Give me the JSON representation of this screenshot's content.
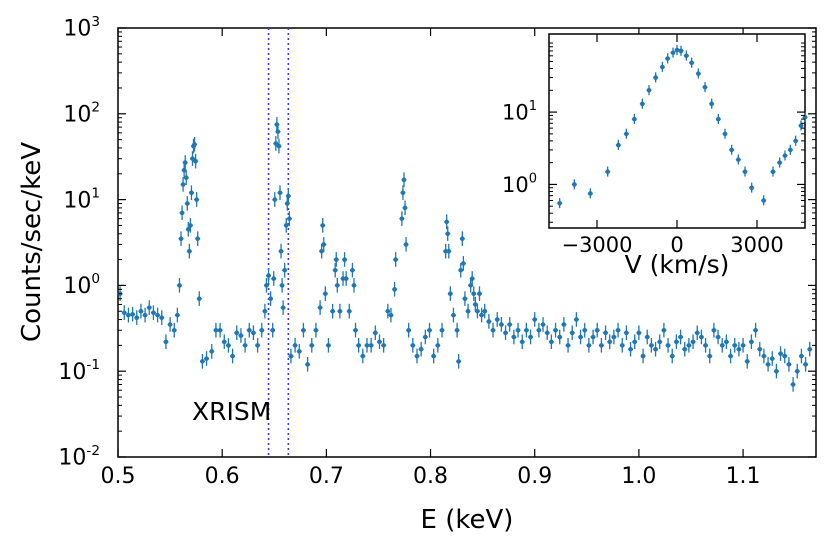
{
  "colors": {
    "data": "#1f77b4",
    "marker_line": "#4a90c8",
    "axis": "#000000",
    "vline": "#3a3aee"
  },
  "chart_data": [
    {
      "id": "main",
      "type": "scatter",
      "title": "",
      "xlabel": "E (keV)",
      "ylabel": "Counts/sec/keV",
      "xlim": [
        0.5,
        1.17
      ],
      "ylim": [
        0.01,
        1000
      ],
      "yscale": "log",
      "x_ticks": [
        0.5,
        0.6,
        0.7,
        0.8,
        0.9,
        1.0,
        1.1
      ],
      "x_tick_labels": [
        "0.5",
        "0.6",
        "0.7",
        "0.8",
        "0.9",
        "1.0",
        "1.1"
      ],
      "y_ticks": [
        {
          "value": 0.01,
          "base": "10",
          "exp": "-2"
        },
        {
          "value": 0.1,
          "base": "10",
          "exp": "-1"
        },
        {
          "value": 1,
          "base": "10",
          "exp": "0"
        },
        {
          "value": 10,
          "base": "10",
          "exp": "1"
        },
        {
          "value": 100,
          "base": "10",
          "exp": "2"
        },
        {
          "value": 1000,
          "base": "10",
          "exp": "3"
        }
      ],
      "annotation": "XRISM",
      "vertical_lines": [
        0.6445,
        0.6635
      ],
      "points": [
        [
          0.502,
          0.8
        ],
        [
          0.506,
          0.48
        ],
        [
          0.51,
          0.45
        ],
        [
          0.514,
          0.46
        ],
        [
          0.518,
          0.42
        ],
        [
          0.522,
          0.5
        ],
        [
          0.526,
          0.45
        ],
        [
          0.53,
          0.55
        ],
        [
          0.534,
          0.48
        ],
        [
          0.538,
          0.45
        ],
        [
          0.542,
          0.42
        ],
        [
          0.546,
          0.22
        ],
        [
          0.55,
          0.35
        ],
        [
          0.554,
          0.3
        ],
        [
          0.557,
          0.45
        ],
        [
          0.559,
          1.0
        ],
        [
          0.5605,
          3.5
        ],
        [
          0.5615,
          7.0
        ],
        [
          0.5625,
          15
        ],
        [
          0.5635,
          22
        ],
        [
          0.5645,
          27
        ],
        [
          0.5655,
          18
        ],
        [
          0.5665,
          9
        ],
        [
          0.5675,
          4.5
        ],
        [
          0.5685,
          2.5
        ],
        [
          0.5695,
          5
        ],
        [
          0.5705,
          12
        ],
        [
          0.5715,
          30
        ],
        [
          0.5725,
          42
        ],
        [
          0.5735,
          44
        ],
        [
          0.5745,
          28
        ],
        [
          0.5755,
          10
        ],
        [
          0.5765,
          3.5
        ],
        [
          0.578,
          0.7
        ],
        [
          0.581,
          0.13
        ],
        [
          0.585,
          0.14
        ],
        [
          0.59,
          0.17
        ],
        [
          0.594,
          0.3
        ],
        [
          0.598,
          0.3
        ],
        [
          0.602,
          0.22
        ],
        [
          0.606,
          0.2
        ],
        [
          0.61,
          0.15
        ],
        [
          0.614,
          0.28
        ],
        [
          0.618,
          0.26
        ],
        [
          0.622,
          0.2
        ],
        [
          0.626,
          0.3
        ],
        [
          0.63,
          0.28
        ],
        [
          0.634,
          0.2
        ],
        [
          0.638,
          0.3
        ],
        [
          0.641,
          0.5
        ],
        [
          0.6425,
          1.0
        ],
        [
          0.6445,
          1.3
        ],
        [
          0.6465,
          0.7
        ],
        [
          0.6485,
          0.3
        ],
        [
          0.6495,
          1.2
        ],
        [
          0.6505,
          10
        ],
        [
          0.6515,
          45
        ],
        [
          0.6525,
          75
        ],
        [
          0.6535,
          62
        ],
        [
          0.6545,
          42
        ],
        [
          0.6555,
          12
        ],
        [
          0.6565,
          2.5
        ],
        [
          0.6575,
          1.0
        ],
        [
          0.6585,
          0.55
        ],
        [
          0.66,
          1.5
        ],
        [
          0.6615,
          5
        ],
        [
          0.6625,
          9
        ],
        [
          0.6635,
          11
        ],
        [
          0.6645,
          6
        ],
        [
          0.666,
          0.15
        ],
        [
          0.67,
          0.2
        ],
        [
          0.674,
          0.17
        ],
        [
          0.678,
          0.3
        ],
        [
          0.682,
          0.12
        ],
        [
          0.686,
          0.2
        ],
        [
          0.69,
          0.3
        ],
        [
          0.694,
          0.55
        ],
        [
          0.6955,
          2.5
        ],
        [
          0.6965,
          5
        ],
        [
          0.6975,
          3
        ],
        [
          0.699,
          0.8
        ],
        [
          0.702,
          0.2
        ],
        [
          0.706,
          0.5
        ],
        [
          0.7085,
          1.5
        ],
        [
          0.7095,
          2.0
        ],
        [
          0.7105,
          1.0
        ],
        [
          0.713,
          0.5
        ],
        [
          0.716,
          1.2
        ],
        [
          0.7175,
          2.0
        ],
        [
          0.719,
          1.2
        ],
        [
          0.722,
          0.5
        ],
        [
          0.725,
          1.5
        ],
        [
          0.7265,
          1.0
        ],
        [
          0.728,
          0.3
        ],
        [
          0.731,
          0.2
        ],
        [
          0.735,
          0.15
        ],
        [
          0.739,
          0.2
        ],
        [
          0.743,
          0.2
        ],
        [
          0.747,
          0.28
        ],
        [
          0.751,
          0.22
        ],
        [
          0.755,
          0.2
        ],
        [
          0.759,
          0.5
        ],
        [
          0.762,
          0.45
        ],
        [
          0.7655,
          0.9
        ],
        [
          0.7665,
          2.0
        ],
        [
          0.7725,
          6
        ],
        [
          0.7735,
          12
        ],
        [
          0.7745,
          17
        ],
        [
          0.7755,
          8
        ],
        [
          0.7765,
          3
        ],
        [
          0.779,
          0.3
        ],
        [
          0.783,
          0.2
        ],
        [
          0.787,
          0.15
        ],
        [
          0.791,
          0.18
        ],
        [
          0.795,
          0.25
        ],
        [
          0.799,
          0.3
        ],
        [
          0.803,
          0.15
        ],
        [
          0.807,
          0.2
        ],
        [
          0.811,
          0.3
        ],
        [
          0.8145,
          2.5
        ],
        [
          0.8155,
          5.5
        ],
        [
          0.8165,
          4
        ],
        [
          0.8175,
          2.5
        ],
        [
          0.819,
          0.8
        ],
        [
          0.822,
          0.45
        ],
        [
          0.8255,
          0.3
        ],
        [
          0.827,
          0.13
        ],
        [
          0.829,
          1.5
        ],
        [
          0.8305,
          3.5
        ],
        [
          0.8315,
          1.8
        ],
        [
          0.833,
          0.7
        ],
        [
          0.836,
          0.5
        ],
        [
          0.8385,
          1.0
        ],
        [
          0.84,
          1.2
        ],
        [
          0.8415,
          0.8
        ],
        [
          0.843,
          0.6
        ],
        [
          0.845,
          0.5
        ],
        [
          0.847,
          0.8
        ],
        [
          0.849,
          0.45
        ],
        [
          0.852,
          0.5
        ],
        [
          0.856,
          0.38
        ],
        [
          0.86,
          0.3
        ],
        [
          0.864,
          0.4
        ],
        [
          0.868,
          0.35
        ],
        [
          0.872,
          0.28
        ],
        [
          0.876,
          0.35
        ],
        [
          0.88,
          0.25
        ],
        [
          0.884,
          0.3
        ],
        [
          0.888,
          0.22
        ],
        [
          0.892,
          0.3
        ],
        [
          0.896,
          0.25
        ],
        [
          0.9,
          0.4
        ],
        [
          0.904,
          0.3
        ],
        [
          0.908,
          0.35
        ],
        [
          0.912,
          0.28
        ],
        [
          0.916,
          0.22
        ],
        [
          0.92,
          0.3
        ],
        [
          0.924,
          0.25
        ],
        [
          0.928,
          0.35
        ],
        [
          0.932,
          0.2
        ],
        [
          0.936,
          0.28
        ],
        [
          0.94,
          0.4
        ],
        [
          0.944,
          0.25
        ],
        [
          0.948,
          0.3
        ],
        [
          0.952,
          0.2
        ],
        [
          0.956,
          0.25
        ],
        [
          0.96,
          0.3
        ],
        [
          0.964,
          0.2
        ],
        [
          0.968,
          0.28
        ],
        [
          0.972,
          0.22
        ],
        [
          0.976,
          0.25
        ],
        [
          0.98,
          0.3
        ],
        [
          0.984,
          0.2
        ],
        [
          0.988,
          0.28
        ],
        [
          0.992,
          0.18
        ],
        [
          0.996,
          0.22
        ],
        [
          1.0,
          0.28
        ],
        [
          1.004,
          0.15
        ],
        [
          1.008,
          0.25
        ],
        [
          1.012,
          0.2
        ],
        [
          1.016,
          0.18
        ],
        [
          1.02,
          0.22
        ],
        [
          1.024,
          0.3
        ],
        [
          1.028,
          0.2
        ],
        [
          1.032,
          0.15
        ],
        [
          1.036,
          0.22
        ],
        [
          1.04,
          0.25
        ],
        [
          1.044,
          0.18
        ],
        [
          1.048,
          0.2
        ],
        [
          1.052,
          0.22
        ],
        [
          1.056,
          0.28
        ],
        [
          1.06,
          0.25
        ],
        [
          1.064,
          0.2
        ],
        [
          1.068,
          0.15
        ],
        [
          1.072,
          0.3
        ],
        [
          1.076,
          0.25
        ],
        [
          1.08,
          0.2
        ],
        [
          1.084,
          0.22
        ],
        [
          1.088,
          0.15
        ],
        [
          1.092,
          0.2
        ],
        [
          1.096,
          0.18
        ],
        [
          1.1,
          0.2
        ],
        [
          1.104,
          0.13
        ],
        [
          1.108,
          0.22
        ],
        [
          1.112,
          0.3
        ],
        [
          1.116,
          0.18
        ],
        [
          1.12,
          0.15
        ],
        [
          1.124,
          0.12
        ],
        [
          1.128,
          0.14
        ],
        [
          1.132,
          0.1
        ],
        [
          1.136,
          0.16
        ],
        [
          1.14,
          0.15
        ],
        [
          1.144,
          0.12
        ],
        [
          1.148,
          0.07
        ],
        [
          1.152,
          0.1
        ],
        [
          1.156,
          0.15
        ],
        [
          1.16,
          0.12
        ],
        [
          1.164,
          0.18
        ]
      ]
    },
    {
      "id": "inset",
      "type": "scatter",
      "title": "",
      "xlabel": "V (km/s)",
      "ylabel": "",
      "xlim": [
        -4800,
        4800
      ],
      "ylim": [
        0.25,
        120
      ],
      "yscale": "log",
      "x_ticks": [
        -3000,
        0,
        3000
      ],
      "x_tick_labels": [
        "−3000",
        "0",
        "3000"
      ],
      "y_ticks": [
        {
          "value": 1,
          "base": "10",
          "exp": "0"
        },
        {
          "value": 10,
          "base": "10",
          "exp": "1"
        }
      ],
      "points": [
        [
          -4400,
          0.55
        ],
        [
          -3850,
          1.0
        ],
        [
          -3250,
          0.75
        ],
        [
          -2600,
          1.5
        ],
        [
          -2200,
          3.5
        ],
        [
          -1900,
          5
        ],
        [
          -1600,
          8
        ],
        [
          -1300,
          13
        ],
        [
          -1050,
          20
        ],
        [
          -800,
          30
        ],
        [
          -550,
          42
        ],
        [
          -350,
          55
        ],
        [
          -150,
          66
        ],
        [
          0,
          72
        ],
        [
          150,
          70
        ],
        [
          350,
          60
        ],
        [
          550,
          48
        ],
        [
          800,
          34
        ],
        [
          1050,
          22
        ],
        [
          1300,
          13
        ],
        [
          1550,
          8
        ],
        [
          1800,
          5
        ],
        [
          2050,
          3
        ],
        [
          2300,
          2.2
        ],
        [
          2550,
          1.5
        ],
        [
          2800,
          0.9
        ],
        [
          3250,
          0.6
        ],
        [
          3600,
          1.5
        ],
        [
          3850,
          2.0
        ],
        [
          4050,
          2.5
        ],
        [
          4250,
          3.0
        ],
        [
          4450,
          4.0
        ],
        [
          4650,
          6.5
        ],
        [
          4800,
          8.5
        ]
      ]
    }
  ]
}
